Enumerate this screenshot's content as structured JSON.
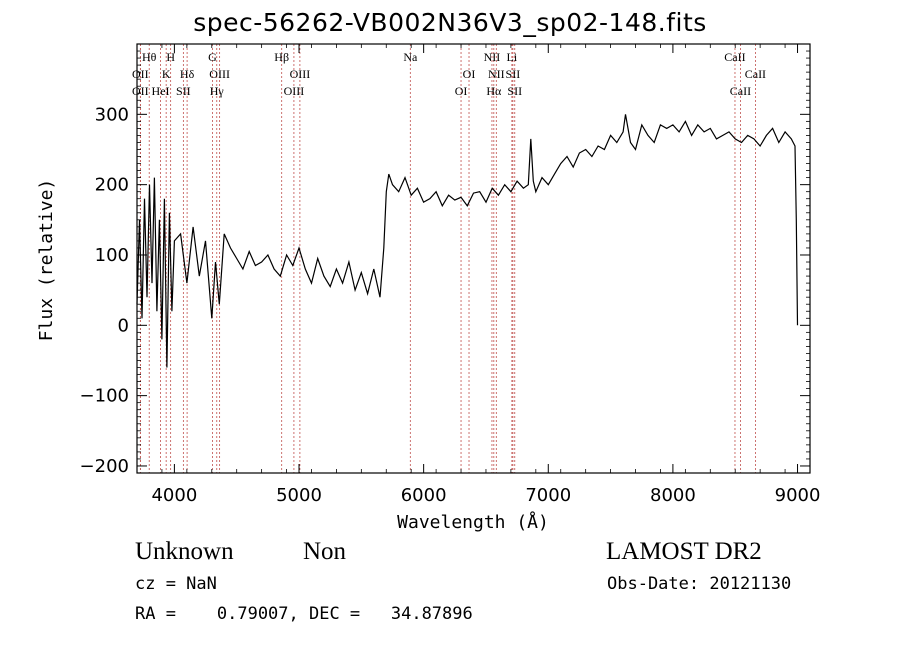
{
  "title": "spec-56262-VB002N36V3_sp02-148.fits",
  "chart_data": {
    "type": "line",
    "xlabel": "Wavelength (Å)",
    "ylabel": "Flux (relative)",
    "xlim": [
      3700,
      9100
    ],
    "ylim": [
      -210,
      400
    ],
    "x_ticks": [
      4000,
      5000,
      6000,
      7000,
      8000,
      9000
    ],
    "y_ticks": [
      -200,
      -100,
      0,
      100,
      200,
      300
    ],
    "grid": false,
    "legend": "none",
    "line_color": "#000000",
    "marker_color": "#c0504d",
    "series": [
      {
        "x": [
          3700,
          3720,
          3740,
          3760,
          3780,
          3800,
          3820,
          3840,
          3860,
          3880,
          3900,
          3920,
          3940,
          3960,
          3980,
          4000,
          4050,
          4100,
          4150,
          4200,
          4250,
          4300,
          4330,
          4360,
          4400,
          4450,
          4500,
          4550,
          4600,
          4650,
          4700,
          4750,
          4800,
          4850,
          4900,
          4950,
          5000,
          5050,
          5100,
          5150,
          5200,
          5250,
          5300,
          5350,
          5400,
          5450,
          5500,
          5550,
          5600,
          5650,
          5680,
          5700,
          5720,
          5750,
          5800,
          5850,
          5900,
          5950,
          6000,
          6050,
          6100,
          6150,
          6200,
          6250,
          6300,
          6350,
          6400,
          6450,
          6500,
          6550,
          6600,
          6650,
          6700,
          6750,
          6800,
          6840,
          6860,
          6880,
          6900,
          6950,
          7000,
          7050,
          7100,
          7150,
          7200,
          7250,
          7300,
          7350,
          7400,
          7450,
          7500,
          7550,
          7600,
          7620,
          7640,
          7660,
          7700,
          7750,
          7800,
          7850,
          7900,
          7950,
          8000,
          8050,
          8100,
          8150,
          8200,
          8250,
          8300,
          8350,
          8400,
          8450,
          8500,
          8550,
          8600,
          8650,
          8700,
          8750,
          8800,
          8850,
          8900,
          8950,
          8980,
          8990,
          9000
        ],
        "y": [
          30,
          150,
          10,
          180,
          40,
          200,
          60,
          210,
          20,
          150,
          -20,
          180,
          -60,
          160,
          20,
          120,
          130,
          60,
          140,
          70,
          120,
          10,
          90,
          30,
          130,
          110,
          95,
          80,
          105,
          85,
          90,
          100,
          80,
          70,
          100,
          85,
          110,
          80,
          60,
          95,
          70,
          55,
          80,
          60,
          90,
          50,
          75,
          45,
          80,
          40,
          110,
          190,
          215,
          200,
          190,
          210,
          185,
          195,
          175,
          180,
          190,
          170,
          185,
          178,
          182,
          170,
          188,
          190,
          175,
          195,
          185,
          200,
          190,
          205,
          195,
          200,
          265,
          205,
          190,
          210,
          200,
          215,
          230,
          240,
          225,
          245,
          250,
          240,
          255,
          250,
          270,
          260,
          275,
          300,
          280,
          260,
          250,
          285,
          270,
          260,
          285,
          280,
          285,
          275,
          290,
          270,
          285,
          275,
          280,
          265,
          270,
          275,
          265,
          260,
          270,
          265,
          255,
          270,
          280,
          260,
          275,
          265,
          255,
          150,
          0
        ]
      }
    ],
    "line_markers": [
      {
        "x": 3727,
        "label": "OII",
        "row": 2
      },
      {
        "x": 3727,
        "label": "OII",
        "row": 3
      },
      {
        "x": 3798,
        "label": "Hθ",
        "row": 1
      },
      {
        "x": 3889,
        "label": "HeI",
        "row": 3
      },
      {
        "x": 3934,
        "label": "K",
        "row": 2
      },
      {
        "x": 3970,
        "label": "H",
        "row": 1
      },
      {
        "x": 4072,
        "label": "SII",
        "row": 3
      },
      {
        "x": 4102,
        "label": "Hδ",
        "row": 2
      },
      {
        "x": 4305,
        "label": "G",
        "row": 1
      },
      {
        "x": 4340,
        "label": "Hγ",
        "row": 3
      },
      {
        "x": 4363,
        "label": "OIII",
        "row": 2
      },
      {
        "x": 4861,
        "label": "Hβ",
        "row": 1
      },
      {
        "x": 4959,
        "label": "OIII",
        "row": 3
      },
      {
        "x": 5007,
        "label": "OIII",
        "row": 2
      },
      {
        "x": 5893,
        "label": "Na",
        "row": 1
      },
      {
        "x": 6300,
        "label": "OI",
        "row": 3
      },
      {
        "x": 6364,
        "label": "OI",
        "row": 2
      },
      {
        "x": 6548,
        "label": "NII",
        "row": 1
      },
      {
        "x": 6563,
        "label": "Hα",
        "row": 3
      },
      {
        "x": 6583,
        "label": "NII",
        "row": 2
      },
      {
        "x": 6708,
        "label": "Li",
        "row": 1
      },
      {
        "x": 6716,
        "label": "SII",
        "row": 2
      },
      {
        "x": 6731,
        "label": "SII",
        "row": 3
      },
      {
        "x": 8498,
        "label": "CaII",
        "row": 1
      },
      {
        "x": 8542,
        "label": "CaII",
        "row": 3
      },
      {
        "x": 8662,
        "label": "CaII",
        "row": 2
      }
    ]
  },
  "footer": {
    "object_class": "Unknown",
    "subclass": "Non",
    "survey": "LAMOST DR2",
    "redshift": "cz = NaN",
    "obs_date": "Obs-Date: 20121130",
    "coords": "RA =    0.79007, DEC =   34.87896"
  }
}
